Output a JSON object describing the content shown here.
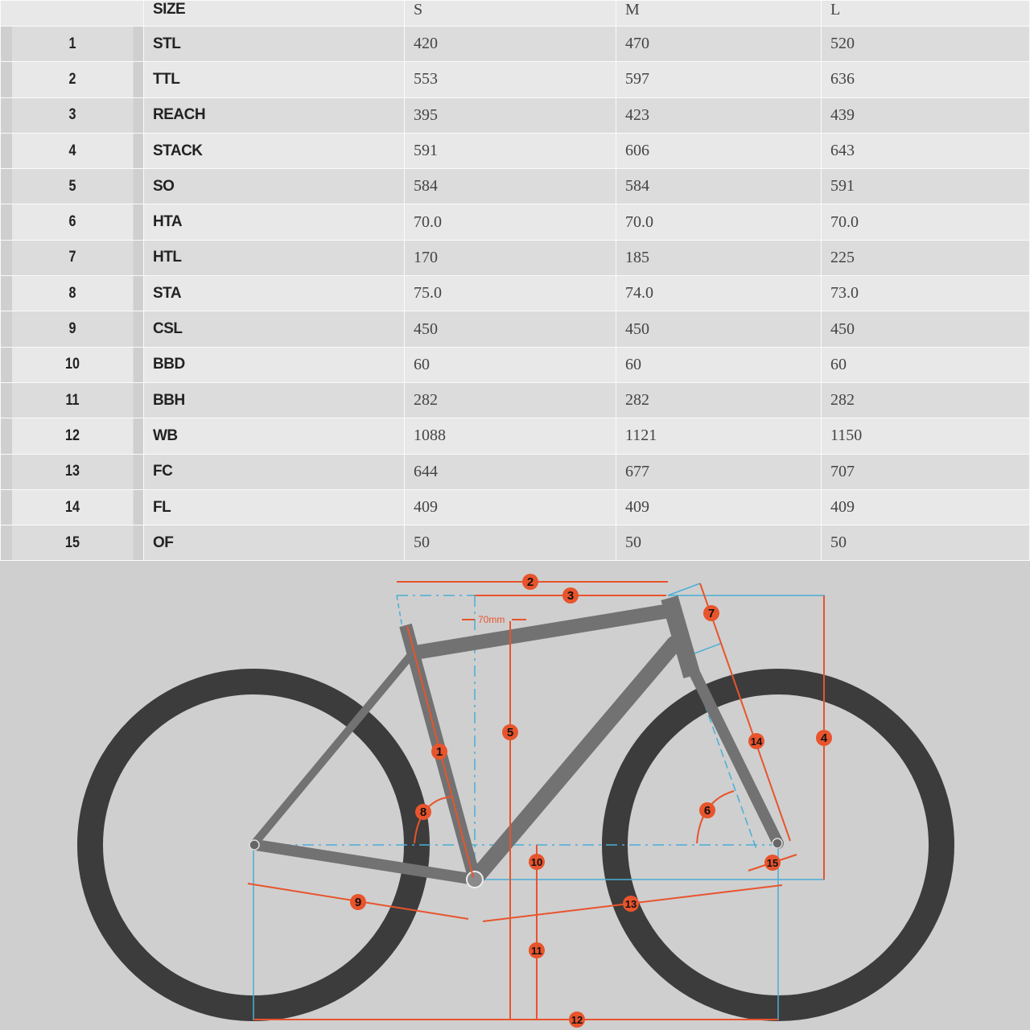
{
  "table": {
    "headers": [
      "",
      "SIZE",
      "S",
      "M",
      "L"
    ],
    "rows": [
      {
        "num": "1",
        "label": "STL",
        "s": "420",
        "m": "470",
        "l": "520"
      },
      {
        "num": "2",
        "label": "TTL",
        "s": "553",
        "m": "597",
        "l": "636"
      },
      {
        "num": "3",
        "label": "REACH",
        "s": "395",
        "m": "423",
        "l": "439"
      },
      {
        "num": "4",
        "label": "STACK",
        "s": "591",
        "m": "606",
        "l": "643"
      },
      {
        "num": "5",
        "label": "SO",
        "s": "584",
        "m": "584",
        "l": "591"
      },
      {
        "num": "6",
        "label": "HTA",
        "s": "70.0",
        "m": "70.0",
        "l": "70.0"
      },
      {
        "num": "7",
        "label": "HTL",
        "s": "170",
        "m": "185",
        "l": "225"
      },
      {
        "num": "8",
        "label": "STA",
        "s": "75.0",
        "m": "74.0",
        "l": "73.0"
      },
      {
        "num": "9",
        "label": "CSL",
        "s": "450",
        "m": "450",
        "l": "450"
      },
      {
        "num": "10",
        "label": "BBD",
        "s": "60",
        "m": "60",
        "l": "60"
      },
      {
        "num": "11",
        "label": "BBH",
        "s": "282",
        "m": "282",
        "l": "282"
      },
      {
        "num": "12",
        "label": "WB",
        "s": "1088",
        "m": "1121",
        "l": "1150"
      },
      {
        "num": "13",
        "label": "FC",
        "s": "644",
        "m": "677",
        "l": "707"
      },
      {
        "num": "14",
        "label": "FL",
        "s": "409",
        "m": "409",
        "l": "409"
      },
      {
        "num": "15",
        "label": "OF",
        "s": "50",
        "m": "50",
        "l": "50"
      }
    ]
  },
  "diagram": {
    "offset_label": "70mm",
    "badges": [
      "1",
      "2",
      "3",
      "4",
      "5",
      "6",
      "7",
      "8",
      "9",
      "10",
      "11",
      "12",
      "13",
      "14",
      "15"
    ],
    "colors": {
      "dimension": "#e8542c",
      "reference": "#4aaed6",
      "frame": "#727272",
      "tire": "#3c3c3c",
      "background": "#cfcfcf"
    }
  }
}
